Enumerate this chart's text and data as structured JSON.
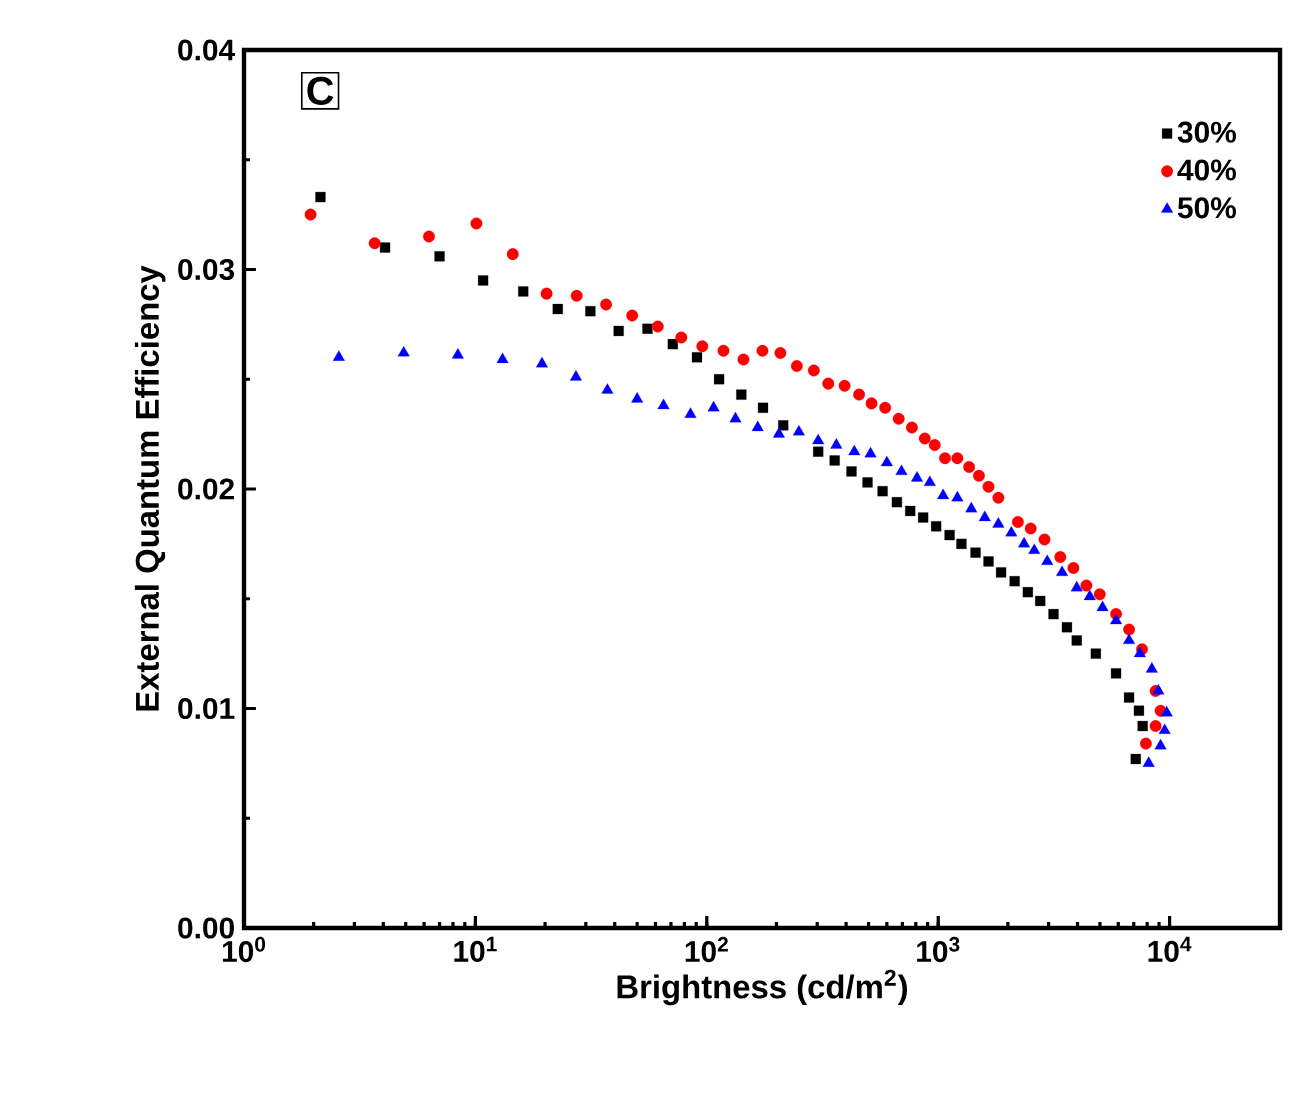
{
  "chart_data": {
    "type": "scatter",
    "xlabel": "Brightness (cd/m$^{2}$)",
    "ylabel": "External Quantum Efficiency",
    "annotations": [
      "C"
    ],
    "log": "x",
    "xlim": [
      1,
      30000
    ],
    "ylim": [
      0,
      0.04
    ],
    "xticks": [
      {
        "value": 1,
        "label": "10$^{0}$"
      },
      {
        "value": 10,
        "label": "10$^{1}$"
      },
      {
        "value": 100,
        "label": "10$^{2}$"
      },
      {
        "value": 1000,
        "label": "10$^{3}$"
      },
      {
        "value": 10000,
        "label": "10$^{4}$"
      }
    ],
    "yticks": [
      {
        "value": 0,
        "label": "0.00"
      },
      {
        "value": 0.01,
        "label": "0.01"
      },
      {
        "value": 0.02,
        "label": "0.02"
      },
      {
        "value": 0.03,
        "label": "0.03"
      },
      {
        "value": 0.04,
        "label": "0.04"
      }
    ],
    "legend": "top right",
    "grid": false,
    "series": [
      {
        "name": "30%",
        "color": "#000000",
        "marker": "square",
        "x": [
          2.14,
          4.07,
          7.0,
          10.8,
          16.1,
          22.7,
          31.4,
          41.6,
          55.4,
          71.3,
          90.7,
          113,
          141,
          175,
          214,
          303,
          357,
          422,
          495,
          575,
          663,
          757,
          861,
          980,
          1120,
          1260,
          1450,
          1650,
          1870,
          2140,
          2440,
          2760,
          3150,
          3600,
          3970,
          4800,
          5870,
          6680,
          7370,
          7650,
          7140
        ],
        "values": [
          0.0333,
          0.031,
          0.0306,
          0.0295,
          0.029,
          0.0282,
          0.0281,
          0.0272,
          0.0273,
          0.0266,
          0.026,
          0.025,
          0.0243,
          0.0237,
          0.0229,
          0.0217,
          0.0213,
          0.0208,
          0.0203,
          0.0199,
          0.0194,
          0.019,
          0.0187,
          0.0183,
          0.0179,
          0.0175,
          0.0171,
          0.0167,
          0.0162,
          0.0158,
          0.0153,
          0.0149,
          0.0143,
          0.0137,
          0.0131,
          0.0125,
          0.0116,
          0.0105,
          0.0099,
          0.0092,
          0.0077
        ]
      },
      {
        "name": "40%",
        "color": "#ff0000",
        "marker": "circle",
        "x": [
          1.94,
          3.67,
          6.3,
          10.1,
          14.5,
          20.3,
          27.4,
          36.7,
          47.6,
          61.4,
          77.6,
          95.6,
          118,
          144,
          174,
          208,
          245,
          290,
          335,
          394,
          455,
          515,
          590,
          675,
          770,
          875,
          966,
          1070,
          1210,
          1360,
          1500,
          1650,
          1820,
          2210,
          2510,
          2880,
          3370,
          3840,
          4370,
          4990,
          5870,
          6680,
          7600,
          8700,
          9140,
          8700,
          7900
        ],
        "values": [
          0.0325,
          0.0312,
          0.0315,
          0.0321,
          0.0307,
          0.0289,
          0.0288,
          0.0284,
          0.0279,
          0.0274,
          0.0269,
          0.0265,
          0.0263,
          0.0259,
          0.0263,
          0.0262,
          0.0256,
          0.0254,
          0.0248,
          0.0247,
          0.0243,
          0.0239,
          0.0237,
          0.0232,
          0.0228,
          0.0223,
          0.022,
          0.0214,
          0.0214,
          0.021,
          0.0206,
          0.0201,
          0.0196,
          0.0185,
          0.0182,
          0.0177,
          0.0169,
          0.0164,
          0.0156,
          0.0152,
          0.0143,
          0.0136,
          0.0127,
          0.0108,
          0.0099,
          0.0092,
          0.0084
        ]
      },
      {
        "name": "50%",
        "color": "#0000ff",
        "marker": "triangle",
        "x": [
          2.57,
          4.9,
          8.4,
          13.1,
          19.4,
          27.2,
          37.2,
          50,
          65,
          85,
          107,
          133,
          166,
          205,
          250,
          303,
          363,
          434,
          510,
          600,
          694,
          810,
          920,
          1050,
          1210,
          1390,
          1590,
          1820,
          2070,
          2350,
          2600,
          2960,
          3430,
          3970,
          4520,
          5130,
          5870,
          6680,
          7440,
          8380,
          8940,
          9720,
          9520,
          9140,
          8120
        ],
        "values": [
          0.026,
          0.0262,
          0.0261,
          0.0259,
          0.0257,
          0.0251,
          0.0245,
          0.0241,
          0.0238,
          0.0234,
          0.0237,
          0.0232,
          0.0228,
          0.0225,
          0.0226,
          0.0222,
          0.022,
          0.0217,
          0.0216,
          0.0212,
          0.0208,
          0.0205,
          0.0203,
          0.0197,
          0.0196,
          0.0191,
          0.0187,
          0.0184,
          0.018,
          0.0175,
          0.0172,
          0.0167,
          0.0162,
          0.0155,
          0.0151,
          0.0146,
          0.014,
          0.0131,
          0.0125,
          0.0118,
          0.0108,
          0.0098,
          0.009,
          0.0083,
          0.0075
        ]
      }
    ]
  }
}
